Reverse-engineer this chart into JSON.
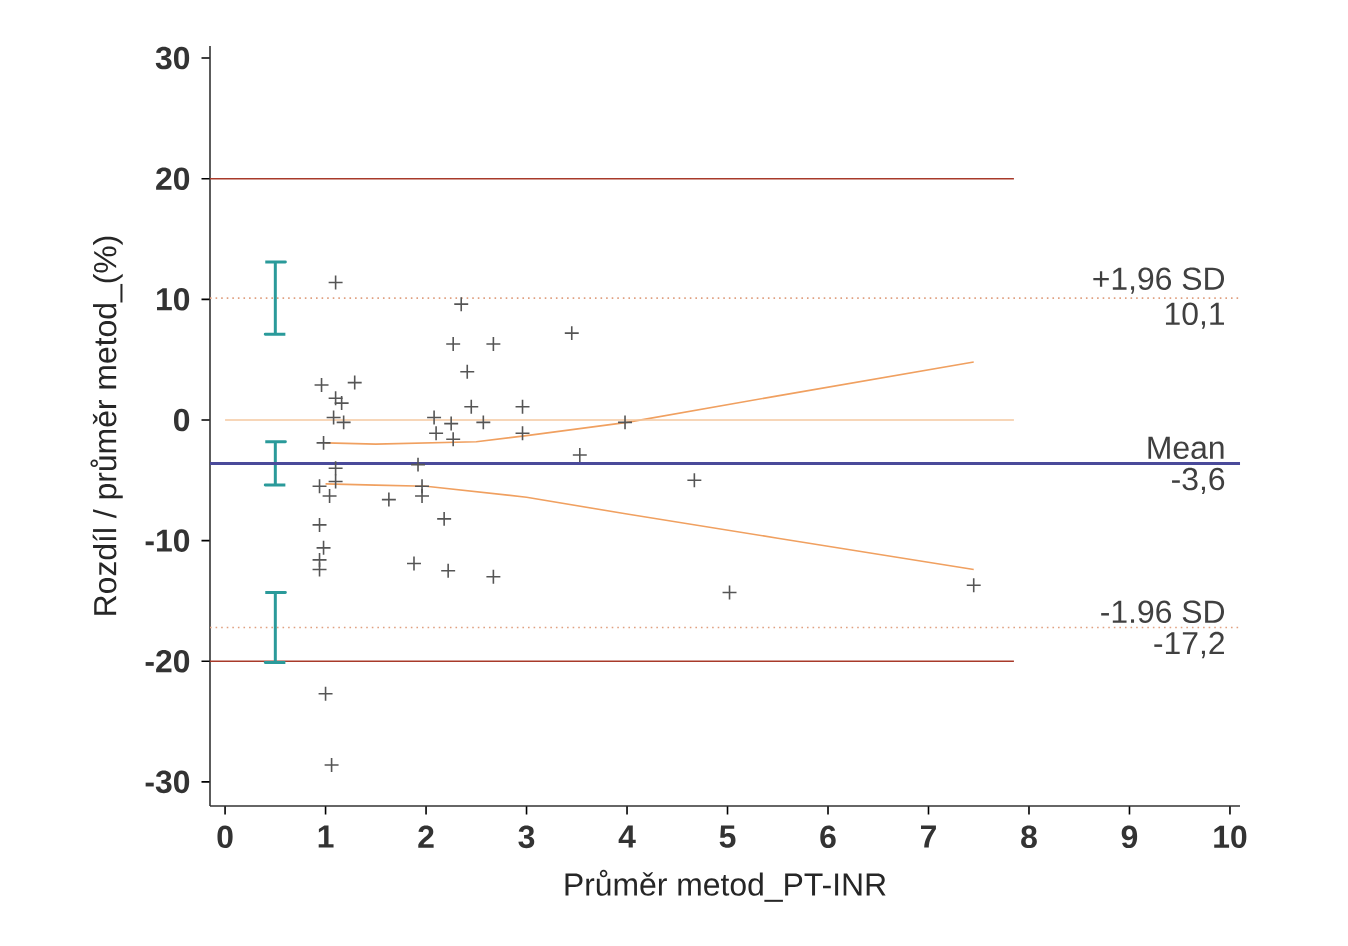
{
  "chart_data": {
    "type": "scatter",
    "xlabel": "Průměr metod_PT-INR",
    "ylabel": "Rozdíl / průměr metod_(%)",
    "xlim": [
      -0.15,
      10.1
    ],
    "ylim": [
      -32,
      31
    ],
    "xticks": [
      0,
      1,
      2,
      3,
      4,
      5,
      6,
      7,
      8,
      9,
      10
    ],
    "yticks": [
      -30,
      -20,
      -10,
      0,
      10,
      20,
      30
    ],
    "marker": "cross",
    "grid": false,
    "series": [
      {
        "color": "#555555",
        "x": [
          1.1,
          2.35,
          2.27,
          2.67,
          3.45,
          2.41,
          0.96,
          1.29,
          1.1,
          1.16,
          2.45,
          2.96,
          1.08,
          1.18,
          2.08,
          2.25,
          2.57,
          2.1,
          2.27,
          2.96,
          3.98,
          3.53,
          0.98,
          1.1,
          1.92,
          0.94,
          1.1,
          1.04,
          1.96,
          1.96,
          1.63,
          2.18,
          0.94,
          0.98,
          0.94,
          0.94,
          1.88,
          2.22,
          2.67,
          1.0,
          1.06,
          4.67,
          5.02,
          7.45
        ],
        "values": [
          11.4,
          9.6,
          6.3,
          6.3,
          7.2,
          4.0,
          2.9,
          3.1,
          1.8,
          1.4,
          1.1,
          1.1,
          0.2,
          -0.2,
          0.2,
          -0.3,
          -0.2,
          -1.1,
          -1.6,
          -1.1,
          -0.2,
          -2.9,
          -1.9,
          -4.0,
          -3.7,
          -5.5,
          -5.1,
          -6.3,
          -5.5,
          -6.3,
          -6.6,
          -8.2,
          -8.7,
          -10.6,
          -11.6,
          -12.4,
          -11.9,
          -12.5,
          -13.0,
          -22.7,
          -28.6,
          -5.0,
          -14.3,
          -13.7
        ]
      },
      {
        "type": "line",
        "marker": "none",
        "color": "#f0a060",
        "x": [
          1.0,
          1.5,
          2.5,
          3.0,
          4.0,
          5.5,
          7.45
        ],
        "values": [
          -1.9,
          -2.0,
          -1.8,
          -1.3,
          -0.2,
          2.0,
          4.8
        ]
      },
      {
        "type": "line",
        "marker": "none",
        "color": "#f0a060",
        "x": [
          1.0,
          1.5,
          2.0,
          3.0,
          4.0,
          5.5,
          7.45
        ],
        "values": [
          -5.3,
          -5.4,
          -5.5,
          -6.4,
          -7.8,
          -9.8,
          -12.4
        ]
      },
      {
        "type": "line",
        "marker": "none",
        "color": "#f5c8a0",
        "x": [
          0,
          7.85
        ],
        "values": [
          0,
          0
        ]
      },
      {
        "type": "line",
        "marker": "none",
        "color": "#a83a2a",
        "x": [
          -0.15,
          7.85
        ],
        "values": [
          20,
          20
        ]
      },
      {
        "type": "line",
        "marker": "none",
        "color": "#a83a2a",
        "x": [
          -0.15,
          7.85
        ],
        "values": [
          -20,
          -20
        ]
      },
      {
        "type": "line",
        "marker": "none",
        "color": "#2a9a9a",
        "x": [
          0.4,
          0.6,
          0.5,
          0.5,
          0.4,
          0.6
        ],
        "values": [
          13.1,
          13.1,
          13.1,
          7.1,
          7.1,
          7.1
        ]
      },
      {
        "type": "line",
        "marker": "none",
        "color": "#2a9a9a",
        "x": [
          0.4,
          0.6,
          0.5,
          0.5,
          0.4,
          0.6
        ],
        "values": [
          -1.8,
          -1.8,
          -1.8,
          -5.4,
          -5.4,
          -5.4
        ]
      },
      {
        "type": "line",
        "marker": "none",
        "color": "#2a9a9a",
        "x": [
          0.4,
          0.6,
          0.5,
          0.5,
          0.4,
          0.6
        ],
        "values": [
          -14.3,
          -14.3,
          -14.3,
          -20.1,
          -20.1,
          -20.1
        ]
      }
    ],
    "ref_lines": [
      {
        "axis": "y",
        "value": 10.1,
        "label": "+1,96 SD",
        "color": "#e0a080",
        "line_style": "dotted"
      },
      {
        "axis": "y",
        "value": -3.6,
        "label": "Mean",
        "color": "#4a4a9a",
        "line_style": "solid"
      },
      {
        "axis": "y",
        "value": -17.2,
        "label": "-1.96 SD",
        "color": "#e0a080",
        "line_style": "dotted"
      }
    ],
    "annotations": [
      "10,1",
      "-3,6",
      "-17,2"
    ]
  }
}
